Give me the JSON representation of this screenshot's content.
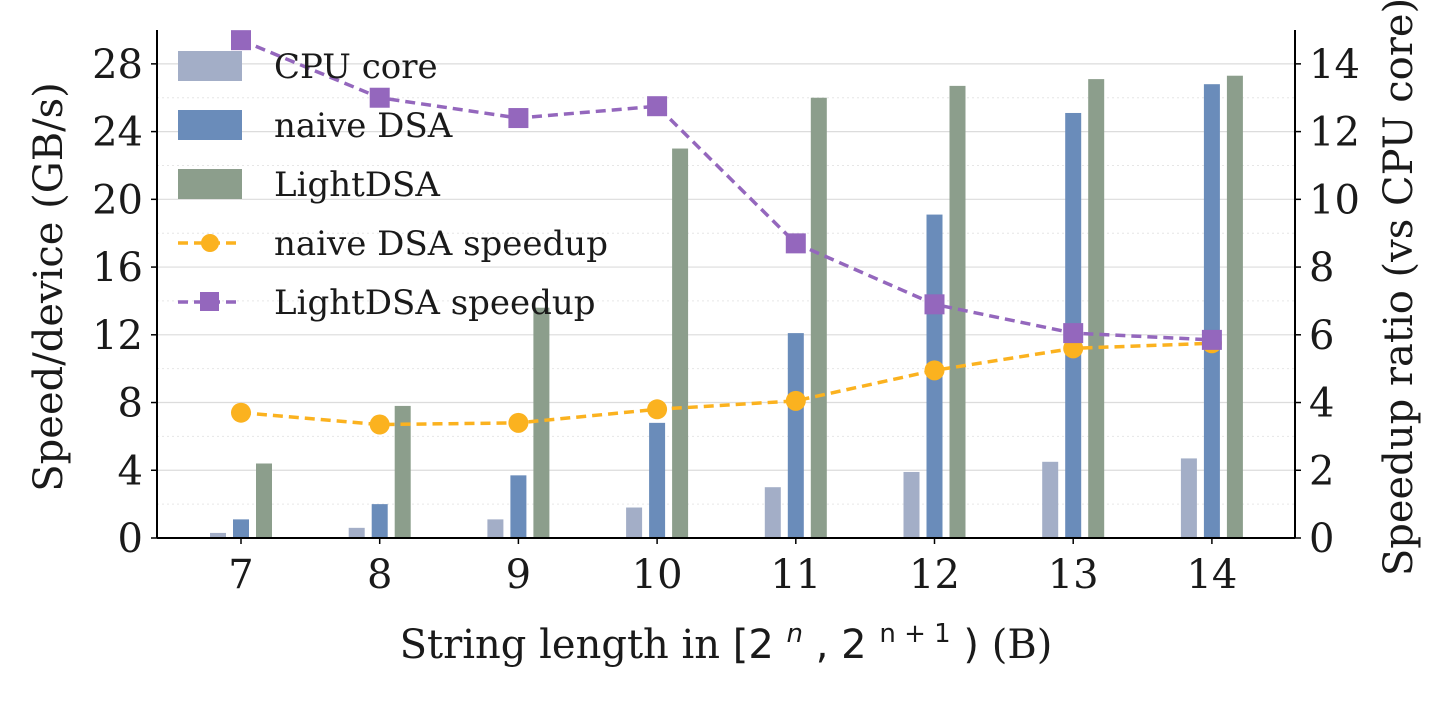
{
  "chart_data": {
    "type": "bar",
    "categories": [
      "7",
      "8",
      "9",
      "10",
      "11",
      "12",
      "13",
      "14"
    ],
    "series": [
      {
        "name": "CPU core",
        "values": [
          0.3,
          0.6,
          1.1,
          1.8,
          3.0,
          3.9,
          4.5,
          4.7
        ],
        "color": "#a3aec7",
        "axis": "left"
      },
      {
        "name": "naive DSA",
        "values": [
          1.1,
          2.0,
          3.7,
          6.8,
          12.1,
          19.1,
          25.1,
          26.8
        ],
        "color": "#6a8cba",
        "axis": "left"
      },
      {
        "name": "LightDSA",
        "values": [
          4.4,
          7.8,
          13.6,
          23.0,
          26.0,
          26.7,
          27.1,
          27.3
        ],
        "color": "#8c9e8c",
        "axis": "left"
      },
      {
        "name": "naive DSA speedup",
        "type": "line",
        "marker": "circle",
        "values": [
          3.7,
          3.35,
          3.4,
          3.8,
          4.05,
          4.95,
          5.6,
          5.75
        ],
        "color": "#fbb21f",
        "axis": "right"
      },
      {
        "name": "LightDSA speedup",
        "type": "line",
        "marker": "square",
        "values": [
          14.7,
          13.0,
          12.4,
          12.75,
          8.7,
          6.9,
          6.05,
          5.85
        ],
        "color": "#9467bd",
        "axis": "right"
      }
    ],
    "xlabel": "String length in [2^n, 2^n+1) (B)",
    "xlabel_prefix": "String length in ",
    "xlabel_math_open": "[2",
    "xlabel_math_sup1": "n",
    "xlabel_math_mid": ", 2",
    "xlabel_math_sup2": "n + 1",
    "xlabel_math_close": ")",
    "xlabel_suffix": " (B)",
    "ylabel": "Speed/device (GB/s)",
    "ylabel_right": "Speedup ratio (vs CPU core)",
    "ylim": [
      0,
      30
    ],
    "ylim_right": [
      0,
      15
    ],
    "yticks": [
      "0",
      "4",
      "8",
      "12",
      "16",
      "20",
      "24",
      "28"
    ],
    "yticks_right": [
      "0",
      "2",
      "4",
      "6",
      "8",
      "10",
      "12",
      "14"
    ],
    "grid": true,
    "legend_position": "top-left"
  }
}
